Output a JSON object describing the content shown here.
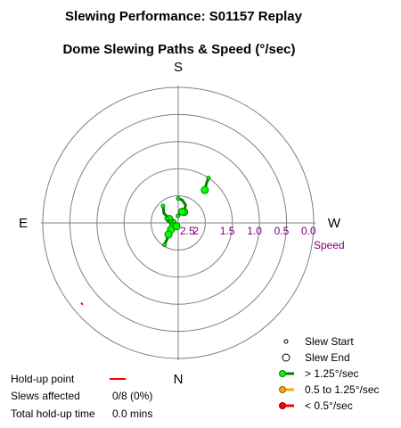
{
  "chart_data": {
    "type": "polar",
    "title": "Slewing Performance: S01157 Replay",
    "subtitle": "Dome Slewing Paths & Speed (°/sec)",
    "directions": {
      "top": "S",
      "bottom": "N",
      "left": "E",
      "right": "W"
    },
    "radial_axis_label": "Speed",
    "radial_ticks": [
      "2.5",
      "2",
      "1.5",
      "1.0",
      "0.5",
      "0.0"
    ],
    "radial_tick_values": [
      2.5,
      2.0,
      1.5,
      1.0,
      0.5,
      0.0
    ],
    "rlim": [
      2.5,
      0.0
    ],
    "grid": true,
    "slews": [
      {
        "start": [
          34,
          1.5
        ],
        "end": [
          39,
          1.72
        ],
        "speed_class": "fast",
        "path": [
          [
            34,
            1.5
          ],
          [
            36,
            1.62
          ],
          [
            39,
            1.72
          ]
        ]
      },
      {
        "start": [
          0,
          2.05
        ],
        "end": [
          29,
          2.27
        ],
        "speed_class": "fast",
        "path": [
          [
            0,
            2.05
          ],
          [
            10,
            2.07
          ],
          [
            22,
            2.14
          ],
          [
            29,
            2.27
          ]
        ]
      },
      {
        "start": [
          357,
          2.37
        ],
        "end": [
          20,
          2.28
        ],
        "speed_class": "fast",
        "path": [
          [
            357,
            2.37
          ],
          [
            2,
            2.36
          ],
          [
            10,
            2.33
          ],
          [
            20,
            2.28
          ]
        ]
      },
      {
        "start": [
          318,
          2.08
        ],
        "end": [
          294,
          2.32
        ],
        "speed_class": "fast",
        "path": [
          [
            318,
            2.08
          ],
          [
            304,
            2.18
          ],
          [
            294,
            2.32
          ]
        ]
      },
      {
        "start": [
          291,
          2.27
        ],
        "end": [
          271,
          2.4
        ],
        "speed_class": "fast",
        "path": [
          [
            291,
            2.27
          ],
          [
            282,
            2.32
          ],
          [
            271,
            2.4
          ]
        ]
      },
      {
        "start": [
          258,
          2.38
        ],
        "end": [
          228,
          2.32
        ],
        "speed_class": "fast",
        "path": [
          [
            258,
            2.38
          ],
          [
            243,
            2.36
          ],
          [
            228,
            2.32
          ]
        ]
      },
      {
        "start": [
          288,
          2.42
        ],
        "end": [
          207,
          2.43
        ],
        "speed_class": "fast",
        "path": [
          [
            288,
            2.42
          ],
          [
            265,
            2.42
          ],
          [
            243,
            2.42
          ],
          [
            221,
            2.43
          ],
          [
            207,
            2.43
          ]
        ]
      },
      {
        "start": [
          212,
          2.02
        ],
        "end": [
          220,
          2.22
        ],
        "speed_class": "fast",
        "path": [
          [
            212,
            2.02
          ],
          [
            214,
            2.12
          ],
          [
            220,
            2.22
          ]
        ]
      }
    ],
    "holdup_points": [
      [
        230,
        0.18
      ]
    ],
    "legend": {
      "placement": "bottom-right",
      "items": [
        {
          "label": "Slew Start",
          "marker": "small-circle"
        },
        {
          "label": "Slew End",
          "marker": "open-circle"
        },
        {
          "label": "> 1.25°/sec",
          "color": "#00cc00"
        },
        {
          "label": "0.5 to 1.25°/sec",
          "color": "#ffa500"
        },
        {
          "label": "< 0.5°/sec",
          "color": "#ff0000"
        }
      ]
    },
    "stats": {
      "holdup_label": "Hold-up point",
      "holdup_color": "#ff0000",
      "slews_affected_label": "Slews affected",
      "slews_affected_value": "0/8 (0%)",
      "total_holdup_label": "Total hold-up time",
      "total_holdup_value": "0.0 mins"
    },
    "colors": {
      "grid": "#808080",
      "path": "#008000",
      "marker_fill": "#00ff00",
      "tick_text": "#800080"
    }
  }
}
